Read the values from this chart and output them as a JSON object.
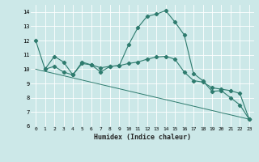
{
  "xlabel": "Humidex (Indice chaleur)",
  "bg_color": "#cce8e8",
  "grid_color": "#ffffff",
  "line_color": "#2e7b6e",
  "xlim": [
    -0.5,
    23.5
  ],
  "ylim": [
    6,
    14.5
  ],
  "yticks": [
    6,
    7,
    8,
    9,
    10,
    11,
    12,
    13,
    14
  ],
  "xticks": [
    0,
    1,
    2,
    3,
    4,
    5,
    6,
    7,
    8,
    9,
    10,
    11,
    12,
    13,
    14,
    15,
    16,
    17,
    18,
    19,
    20,
    21,
    22,
    23
  ],
  "series1_x": [
    0,
    1,
    2,
    3,
    4,
    5,
    6,
    7,
    8,
    9,
    10,
    11,
    12,
    13,
    14,
    15,
    16,
    17,
    18,
    19,
    20,
    21,
    22,
    23
  ],
  "series1_y": [
    12.0,
    10.0,
    10.9,
    10.5,
    9.6,
    10.5,
    10.3,
    9.8,
    10.2,
    10.25,
    11.7,
    12.9,
    13.7,
    13.85,
    14.1,
    13.3,
    12.4,
    9.7,
    9.2,
    8.45,
    8.5,
    8.0,
    7.5,
    6.5
  ],
  "series2_x": [
    1,
    2,
    3,
    4,
    5,
    6,
    7,
    8,
    9,
    10,
    11,
    12,
    13,
    14,
    15,
    16,
    17,
    18,
    19,
    20,
    21,
    22,
    23
  ],
  "series2_y": [
    10.0,
    10.2,
    9.8,
    9.6,
    10.4,
    10.3,
    10.1,
    10.2,
    10.25,
    10.4,
    10.5,
    10.7,
    10.85,
    10.9,
    10.7,
    9.8,
    9.2,
    9.1,
    8.7,
    8.6,
    8.5,
    8.3,
    6.5
  ],
  "series3_x": [
    0,
    23
  ],
  "series3_y": [
    10.0,
    6.5
  ]
}
